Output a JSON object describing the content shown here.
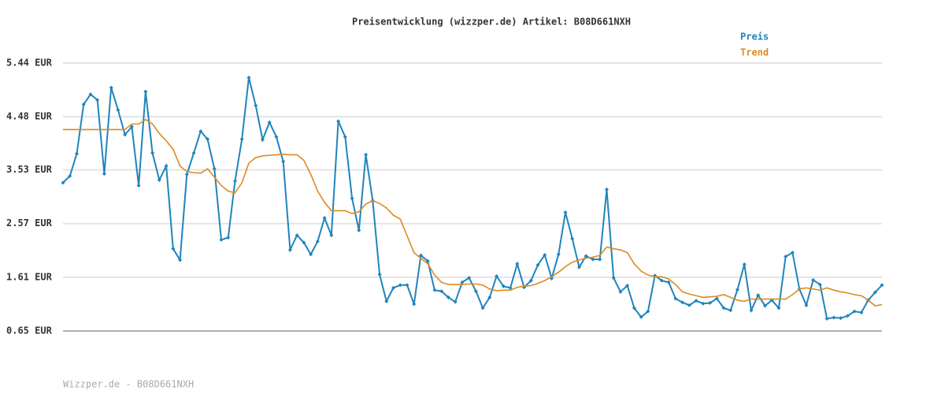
{
  "chart_data": {
    "type": "line",
    "title": "Preisentwicklung (wizzper.de) Artikel: B08D661NXH",
    "footer": "Wizzper.de - B08D661NXH",
    "legend": "top-right",
    "grid": true,
    "ylim": [
      0.65,
      5.44
    ],
    "yticks": [
      {
        "value": 0.65,
        "label": "0.65 EUR"
      },
      {
        "value": 1.61,
        "label": "1.61 EUR"
      },
      {
        "value": 2.57,
        "label": "2.57 EUR"
      },
      {
        "value": 3.53,
        "label": "3.53 EUR"
      },
      {
        "value": 4.48,
        "label": "4.48 EUR"
      },
      {
        "value": 5.44,
        "label": "5.44 EUR"
      }
    ],
    "categories": [
      null,
      null,
      null,
      null,
      null,
      null,
      null,
      null,
      null,
      null,
      null,
      null,
      null,
      null,
      null,
      null,
      null,
      null,
      null,
      null,
      null,
      null,
      null,
      null,
      null,
      null,
      null,
      null,
      null,
      null,
      null,
      null,
      null,
      null,
      null,
      null,
      null,
      null,
      null,
      null,
      null,
      null,
      null,
      null,
      null,
      null,
      null,
      null,
      null,
      null,
      null,
      null,
      null,
      null,
      null,
      null,
      null,
      null,
      null,
      null,
      null,
      null,
      null,
      null,
      null,
      null,
      null,
      null,
      null,
      null,
      null,
      null,
      null,
      null,
      null,
      null,
      null,
      null,
      null,
      null,
      null,
      null,
      null,
      null,
      null,
      null,
      null,
      null,
      null,
      null,
      null,
      null,
      null,
      null,
      null,
      null,
      null,
      null,
      null,
      null,
      null,
      null,
      null,
      null,
      null,
      null,
      null,
      null,
      null,
      null,
      null,
      null,
      null,
      null,
      null,
      null,
      null,
      null,
      null,
      null
    ],
    "series": [
      {
        "name": "Preis",
        "color": "#1f84bd",
        "markers": true,
        "values": [
          3.3,
          3.42,
          3.82,
          4.7,
          4.88,
          4.78,
          3.46,
          5.0,
          4.6,
          4.16,
          4.3,
          3.25,
          4.93,
          3.83,
          3.35,
          3.6,
          2.12,
          1.92,
          3.45,
          3.83,
          4.22,
          4.08,
          3.55,
          2.28,
          2.32,
          3.33,
          4.08,
          5.18,
          4.68,
          4.07,
          4.38,
          4.12,
          3.68,
          2.1,
          2.36,
          2.23,
          2.02,
          2.25,
          2.67,
          2.36,
          4.4,
          4.12,
          3.02,
          2.45,
          3.8,
          2.98,
          1.66,
          1.18,
          1.42,
          1.47,
          1.47,
          1.13,
          2.0,
          1.9,
          1.38,
          1.36,
          1.25,
          1.17,
          1.52,
          1.6,
          1.36,
          1.06,
          1.25,
          1.63,
          1.45,
          1.42,
          1.85,
          1.43,
          1.55,
          1.83,
          2.01,
          1.59,
          2.02,
          2.77,
          2.3,
          1.79,
          1.99,
          1.93,
          1.93,
          3.18,
          1.6,
          1.35,
          1.46,
          1.06,
          0.9,
          1.0,
          1.64,
          1.55,
          1.52,
          1.23,
          1.16,
          1.11,
          1.19,
          1.14,
          1.15,
          1.23,
          1.06,
          1.02,
          1.39,
          1.84,
          1.02,
          1.29,
          1.1,
          1.2,
          1.06,
          1.98,
          2.05,
          1.4,
          1.11,
          1.56,
          1.48,
          0.87,
          0.89,
          0.88,
          0.92,
          1.0,
          0.98,
          1.2,
          1.34,
          1.47
        ]
      },
      {
        "name": "Trend",
        "color": "#dd8a22",
        "markers": false,
        "values": [
          4.25,
          4.25,
          4.25,
          4.25,
          4.25,
          4.25,
          4.25,
          4.25,
          4.25,
          4.25,
          4.35,
          4.35,
          4.43,
          4.35,
          4.18,
          4.05,
          3.9,
          3.6,
          3.5,
          3.48,
          3.47,
          3.55,
          3.4,
          3.25,
          3.15,
          3.12,
          3.3,
          3.65,
          3.75,
          3.78,
          3.79,
          3.8,
          3.81,
          3.8,
          3.8,
          3.7,
          3.45,
          3.15,
          2.95,
          2.8,
          2.8,
          2.8,
          2.75,
          2.78,
          2.92,
          2.98,
          2.93,
          2.85,
          2.72,
          2.65,
          2.35,
          2.05,
          1.95,
          1.85,
          1.65,
          1.52,
          1.48,
          1.48,
          1.48,
          1.49,
          1.49,
          1.47,
          1.4,
          1.37,
          1.38,
          1.38,
          1.43,
          1.45,
          1.46,
          1.5,
          1.55,
          1.62,
          1.7,
          1.8,
          1.88,
          1.92,
          1.95,
          1.97,
          2.0,
          2.15,
          2.12,
          2.1,
          2.05,
          1.85,
          1.72,
          1.65,
          1.62,
          1.62,
          1.58,
          1.48,
          1.35,
          1.31,
          1.28,
          1.25,
          1.26,
          1.27,
          1.3,
          1.25,
          1.2,
          1.18,
          1.22,
          1.22,
          1.22,
          1.22,
          1.22,
          1.22,
          1.3,
          1.4,
          1.42,
          1.4,
          1.38,
          1.42,
          1.38,
          1.35,
          1.33,
          1.3,
          1.28,
          1.2,
          1.1,
          1.12
        ]
      }
    ]
  }
}
